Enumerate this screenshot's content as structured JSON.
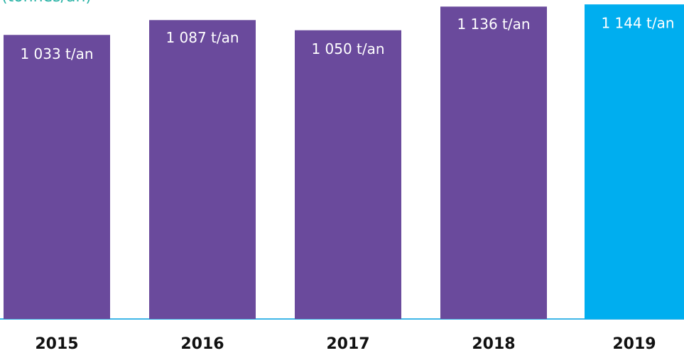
{
  "chart_data": {
    "type": "bar",
    "subtitle": "(tonnes/an)",
    "categories": [
      "2015",
      "2016",
      "2017",
      "2018",
      "2019"
    ],
    "values": [
      1033,
      1087,
      1050,
      1136,
      1144
    ],
    "value_labels": [
      "1 033 t/an",
      "1 087 t/an",
      "1 050 t/an",
      "1 136 t/an",
      "1 144 t/an"
    ],
    "colors": [
      "#6a4a9c",
      "#6a4a9c",
      "#6a4a9c",
      "#6a4a9c",
      "#00aeef"
    ],
    "ylim": [
      0,
      1160
    ]
  }
}
